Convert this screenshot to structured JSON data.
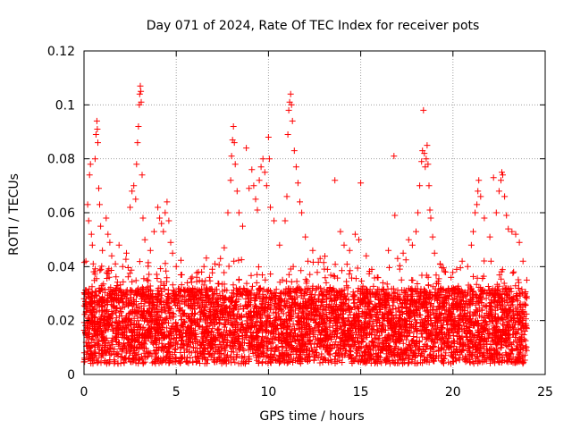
{
  "chart_data": {
    "type": "scatter",
    "title": "Day 071 of 2024, Rate Of TEC Index for receiver pots",
    "xlabel": "GPS time / hours",
    "ylabel": "ROTI / TECUs",
    "xlim": [
      0,
      25
    ],
    "ylim": [
      0,
      0.12
    ],
    "x_ticks": [
      0,
      5,
      10,
      15,
      20,
      25
    ],
    "x_tick_labels": [
      "0",
      "5",
      "10",
      "15",
      "20",
      "25"
    ],
    "y_ticks": [
      0,
      0.02,
      0.04,
      0.06,
      0.08,
      0.1,
      0.12
    ],
    "y_tick_labels": [
      "0",
      "0.02",
      "0.04",
      "0.06",
      "0.08",
      "0.1",
      "0.12"
    ],
    "grid": true,
    "marker": "+",
    "series": [
      {
        "name": "ROTI",
        "color": "#ff0000",
        "points": [
          [
            0.1,
            0.042
          ],
          [
            0.2,
            0.063
          ],
          [
            0.25,
            0.057
          ],
          [
            0.3,
            0.074
          ],
          [
            0.35,
            0.078
          ],
          [
            0.4,
            0.052
          ],
          [
            0.45,
            0.048
          ],
          [
            0.5,
            0.041
          ],
          [
            0.6,
            0.08
          ],
          [
            0.65,
            0.089
          ],
          [
            0.7,
            0.094
          ],
          [
            0.72,
            0.091
          ],
          [
            0.75,
            0.086
          ],
          [
            0.8,
            0.069
          ],
          [
            0.85,
            0.063
          ],
          [
            0.9,
            0.055
          ],
          [
            1.0,
            0.046
          ],
          [
            1.2,
            0.058
          ],
          [
            1.3,
            0.052
          ],
          [
            1.4,
            0.049
          ],
          [
            1.5,
            0.044
          ],
          [
            1.7,
            0.041
          ],
          [
            1.9,
            0.048
          ],
          [
            2.1,
            0.04
          ],
          [
            2.3,
            0.045
          ],
          [
            2.5,
            0.062
          ],
          [
            2.6,
            0.068
          ],
          [
            2.7,
            0.07
          ],
          [
            2.8,
            0.065
          ],
          [
            2.85,
            0.078
          ],
          [
            2.9,
            0.086
          ],
          [
            2.95,
            0.092
          ],
          [
            3.0,
            0.1
          ],
          [
            3.02,
            0.104
          ],
          [
            3.05,
            0.107
          ],
          [
            3.08,
            0.105
          ],
          [
            3.1,
            0.101
          ],
          [
            3.15,
            0.074
          ],
          [
            3.2,
            0.058
          ],
          [
            3.3,
            0.05
          ],
          [
            3.6,
            0.046
          ],
          [
            3.8,
            0.053
          ],
          [
            4.0,
            0.062
          ],
          [
            4.1,
            0.058
          ],
          [
            4.2,
            0.056
          ],
          [
            4.3,
            0.053
          ],
          [
            4.4,
            0.06
          ],
          [
            4.5,
            0.064
          ],
          [
            4.6,
            0.057
          ],
          [
            4.7,
            0.049
          ],
          [
            4.8,
            0.045
          ],
          [
            5.0,
            0.04
          ],
          [
            5.3,
            0.037
          ],
          [
            5.6,
            0.034
          ],
          [
            5.9,
            0.032
          ],
          [
            6.2,
            0.038
          ],
          [
            6.5,
            0.04
          ],
          [
            6.8,
            0.036
          ],
          [
            7.1,
            0.041
          ],
          [
            7.4,
            0.043
          ],
          [
            7.6,
            0.047
          ],
          [
            7.8,
            0.06
          ],
          [
            7.95,
            0.072
          ],
          [
            8.0,
            0.081
          ],
          [
            8.05,
            0.087
          ],
          [
            8.1,
            0.092
          ],
          [
            8.15,
            0.086
          ],
          [
            8.2,
            0.078
          ],
          [
            8.3,
            0.068
          ],
          [
            8.4,
            0.06
          ],
          [
            8.6,
            0.055
          ],
          [
            8.8,
            0.084
          ],
          [
            8.95,
            0.069
          ],
          [
            9.1,
            0.076
          ],
          [
            9.2,
            0.07
          ],
          [
            9.3,
            0.065
          ],
          [
            9.4,
            0.061
          ],
          [
            9.5,
            0.072
          ],
          [
            9.6,
            0.077
          ],
          [
            9.7,
            0.08
          ],
          [
            9.8,
            0.075
          ],
          [
            9.9,
            0.07
          ],
          [
            10.0,
            0.088
          ],
          [
            10.05,
            0.08
          ],
          [
            10.1,
            0.062
          ],
          [
            10.3,
            0.057
          ],
          [
            10.6,
            0.048
          ],
          [
            10.9,
            0.057
          ],
          [
            11.0,
            0.066
          ],
          [
            11.05,
            0.089
          ],
          [
            11.1,
            0.098
          ],
          [
            11.15,
            0.101
          ],
          [
            11.2,
            0.104
          ],
          [
            11.25,
            0.1
          ],
          [
            11.3,
            0.094
          ],
          [
            11.4,
            0.083
          ],
          [
            11.5,
            0.077
          ],
          [
            11.6,
            0.071
          ],
          [
            11.7,
            0.064
          ],
          [
            11.8,
            0.06
          ],
          [
            12.0,
            0.051
          ],
          [
            12.4,
            0.046
          ],
          [
            12.8,
            0.043
          ],
          [
            13.2,
            0.039
          ],
          [
            13.6,
            0.072
          ],
          [
            13.9,
            0.053
          ],
          [
            14.1,
            0.048
          ],
          [
            14.4,
            0.046
          ],
          [
            14.7,
            0.052
          ],
          [
            14.9,
            0.05
          ],
          [
            15.0,
            0.071
          ],
          [
            15.3,
            0.044
          ],
          [
            15.6,
            0.039
          ],
          [
            15.9,
            0.036
          ],
          [
            16.2,
            0.034
          ],
          [
            16.5,
            0.046
          ],
          [
            16.8,
            0.081
          ],
          [
            16.85,
            0.059
          ],
          [
            17.0,
            0.043
          ],
          [
            17.3,
            0.045
          ],
          [
            17.6,
            0.05
          ],
          [
            17.8,
            0.048
          ],
          [
            18.0,
            0.053
          ],
          [
            18.1,
            0.06
          ],
          [
            18.2,
            0.07
          ],
          [
            18.3,
            0.079
          ],
          [
            18.35,
            0.083
          ],
          [
            18.4,
            0.098
          ],
          [
            18.45,
            0.082
          ],
          [
            18.5,
            0.077
          ],
          [
            18.55,
            0.08
          ],
          [
            18.6,
            0.085
          ],
          [
            18.65,
            0.078
          ],
          [
            18.7,
            0.07
          ],
          [
            18.75,
            0.061
          ],
          [
            18.8,
            0.058
          ],
          [
            18.9,
            0.051
          ],
          [
            19.0,
            0.045
          ],
          [
            19.3,
            0.041
          ],
          [
            19.6,
            0.038
          ],
          [
            19.9,
            0.036
          ],
          [
            20.2,
            0.039
          ],
          [
            20.5,
            0.042
          ],
          [
            20.8,
            0.04
          ],
          [
            21.0,
            0.048
          ],
          [
            21.1,
            0.053
          ],
          [
            21.2,
            0.06
          ],
          [
            21.3,
            0.063
          ],
          [
            21.35,
            0.068
          ],
          [
            21.4,
            0.072
          ],
          [
            21.5,
            0.066
          ],
          [
            21.7,
            0.058
          ],
          [
            22.0,
            0.051
          ],
          [
            22.2,
            0.073
          ],
          [
            22.35,
            0.06
          ],
          [
            22.5,
            0.068
          ],
          [
            22.6,
            0.072
          ],
          [
            22.65,
            0.075
          ],
          [
            22.7,
            0.074
          ],
          [
            22.8,
            0.066
          ],
          [
            22.9,
            0.059
          ],
          [
            23.0,
            0.054
          ],
          [
            23.2,
            0.053
          ],
          [
            23.4,
            0.052
          ],
          [
            23.6,
            0.049
          ],
          [
            23.8,
            0.042
          ],
          [
            24.0,
            0.035
          ]
        ]
      }
    ]
  }
}
